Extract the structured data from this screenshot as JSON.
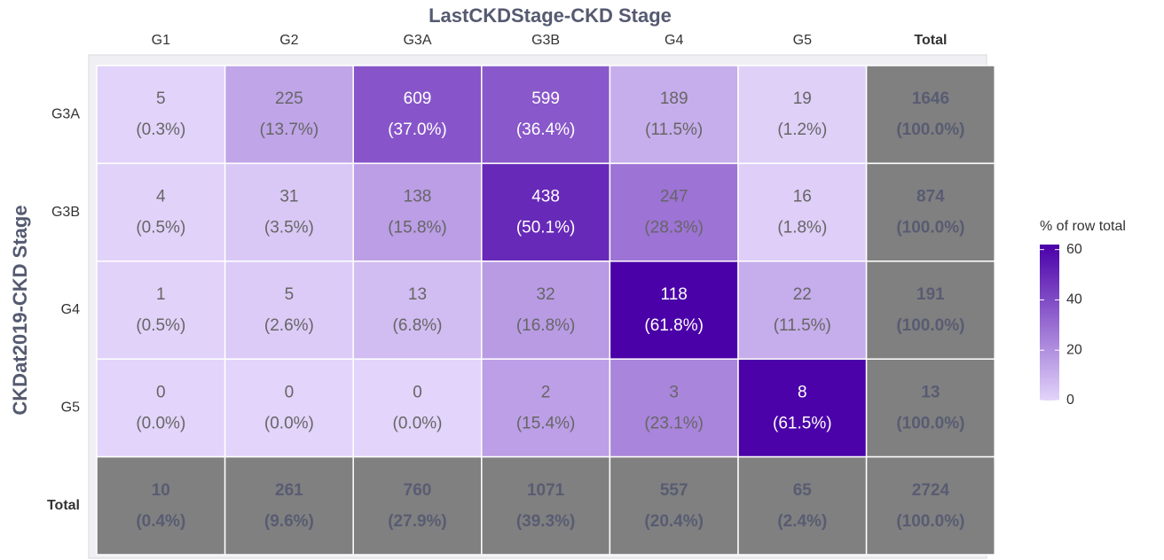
{
  "chart_data": {
    "type": "heatmap",
    "title": "LastCKDStage-CKD Stage",
    "y_label": "CKDat2019-CKD Stage",
    "x_categories": [
      "G1",
      "G2",
      "G3A",
      "G3B",
      "G4",
      "G5",
      "Total"
    ],
    "y_categories": [
      "G3A",
      "G3B",
      "G4",
      "G5",
      "Total"
    ],
    "counts": [
      [
        5,
        225,
        609,
        599,
        189,
        19,
        1646
      ],
      [
        4,
        31,
        138,
        438,
        247,
        16,
        874
      ],
      [
        1,
        5,
        13,
        32,
        118,
        22,
        191
      ],
      [
        0,
        0,
        0,
        2,
        3,
        8,
        13
      ],
      [
        10,
        261,
        760,
        1071,
        557,
        65,
        2724
      ]
    ],
    "values": [
      [
        0.3,
        13.7,
        37.0,
        36.4,
        11.5,
        1.2,
        100.0
      ],
      [
        0.5,
        3.5,
        15.8,
        50.1,
        28.3,
        1.8,
        100.0
      ],
      [
        0.5,
        2.6,
        6.8,
        16.8,
        61.8,
        11.5,
        100.0
      ],
      [
        0.0,
        0.0,
        0.0,
        15.4,
        23.1,
        61.5,
        100.0
      ],
      [
        0.4,
        9.6,
        27.9,
        39.3,
        20.4,
        2.4,
        100.0
      ]
    ],
    "value_labels": [
      [
        "(0.3%)",
        "(13.7%)",
        "(37.0%)",
        "(36.4%)",
        "(11.5%)",
        "(1.2%)",
        "(100.0%)"
      ],
      [
        "(0.5%)",
        "(3.5%)",
        "(15.8%)",
        "(50.1%)",
        "(28.3%)",
        "(1.8%)",
        "(100.0%)"
      ],
      [
        "(0.5%)",
        "(2.6%)",
        "(6.8%)",
        "(16.8%)",
        "(61.8%)",
        "(11.5%)",
        "(100.0%)"
      ],
      [
        "(0.0%)",
        "(0.0%)",
        "(0.0%)",
        "(15.4%)",
        "(23.1%)",
        "(61.5%)",
        "(100.0%)"
      ],
      [
        "(0.4%)",
        "(9.6%)",
        "(27.9%)",
        "(39.3%)",
        "(20.4%)",
        "(2.4%)",
        "(100.0%)"
      ]
    ],
    "colorbar": {
      "title": "% of row total",
      "lim": [
        0,
        62
      ],
      "ticks": [
        0,
        20,
        40,
        60
      ],
      "colors": [
        "#e2d4fa",
        "#4a00a8"
      ]
    },
    "total_color": "#808080"
  }
}
